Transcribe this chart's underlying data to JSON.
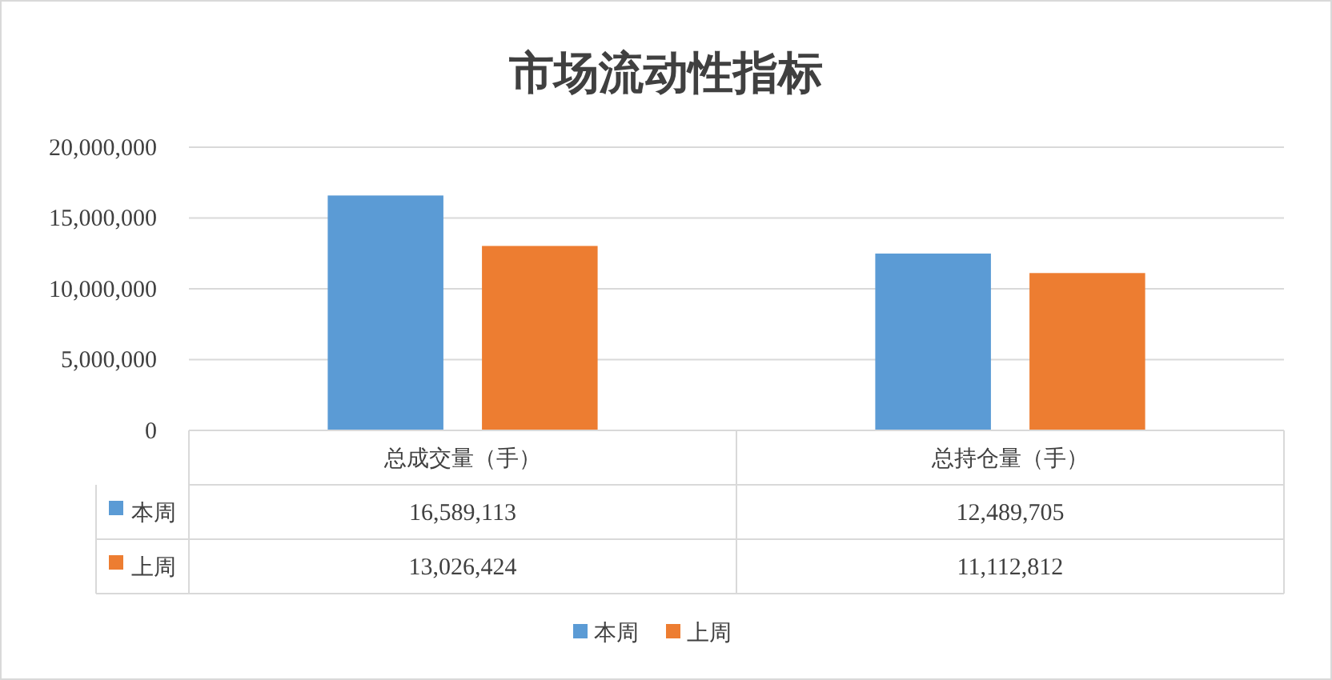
{
  "chart_data": {
    "type": "bar",
    "title": "市场流动性指标",
    "categories": [
      "总成交量（手）",
      "总持仓量（手）"
    ],
    "series": [
      {
        "name": "本周",
        "color": "#5b9bd5",
        "values": [
          16589113,
          12489705
        ],
        "value_labels": [
          "16,589,113",
          "12,489,705"
        ]
      },
      {
        "name": "上周",
        "color": "#ed7d31",
        "values": [
          13026424,
          11112812
        ],
        "value_labels": [
          "13,026,424",
          "11,112,812"
        ]
      }
    ],
    "ylim": [
      0,
      20000000
    ],
    "yticks": [
      0,
      {
        "value": 5000000,
        "label": "5,000,000"
      },
      {
        "value": 10000000,
        "label": "10,000,000"
      },
      {
        "value": 15000000,
        "label": "15,000,000"
      },
      {
        "value": 20000000,
        "label": "20,000,000"
      }
    ],
    "grid": "y",
    "legend": "bottom"
  }
}
